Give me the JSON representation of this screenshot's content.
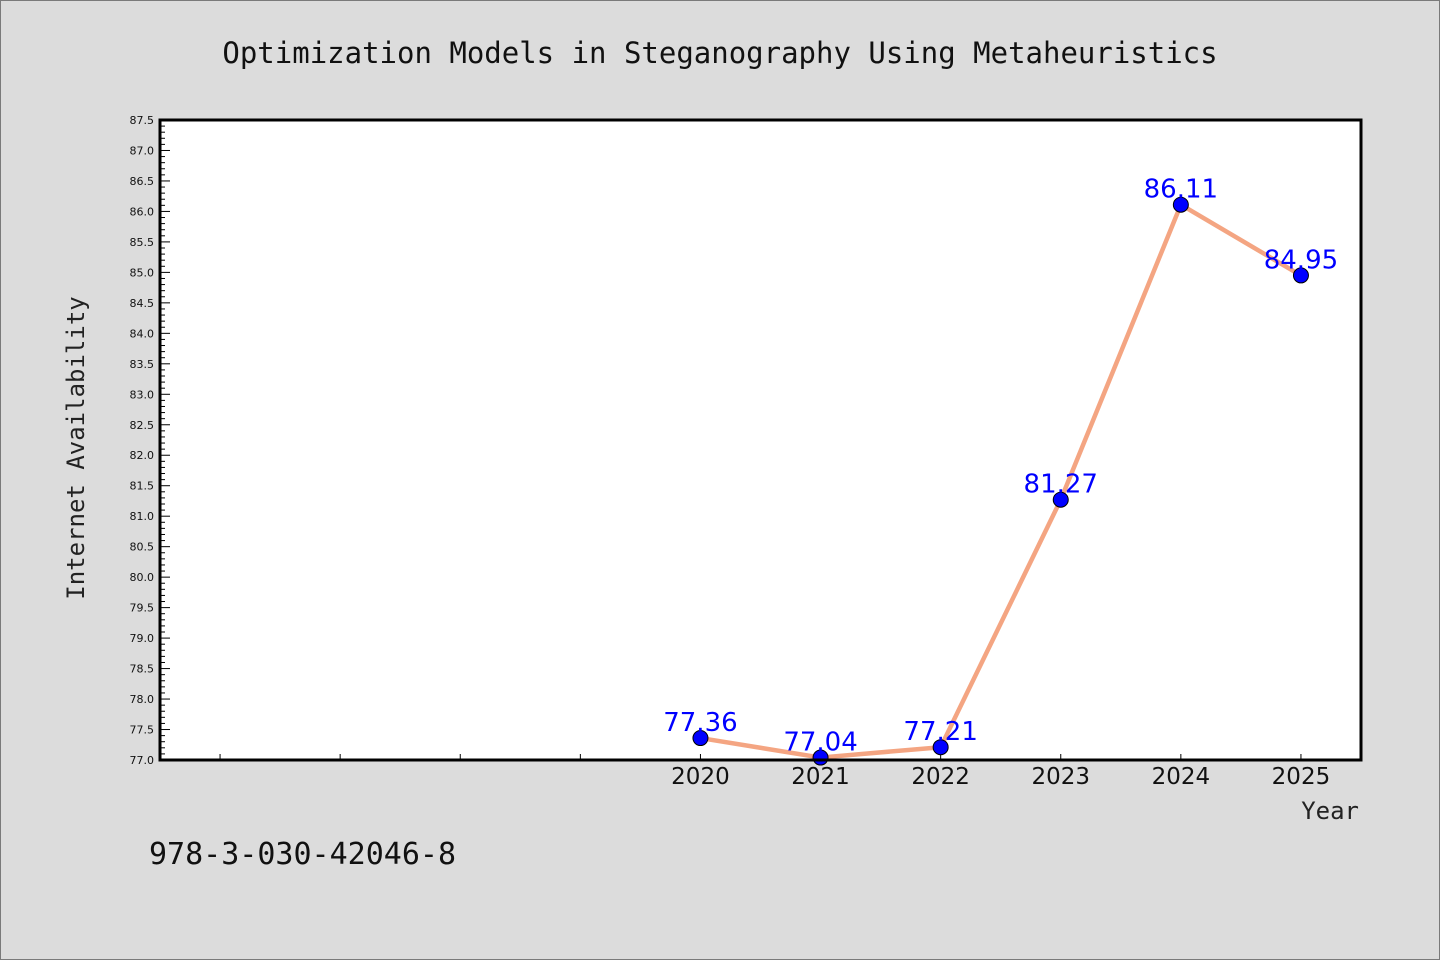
{
  "chart_data": {
    "type": "line",
    "title": "Optimization Models in Steganography Using Metaheuristics",
    "xlabel": "Year",
    "ylabel": "Internet Availability",
    "categories": [
      "2020",
      "2021",
      "2022",
      "2023",
      "2024",
      "2025"
    ],
    "values": [
      77.36,
      77.04,
      77.21,
      81.27,
      86.11,
      84.95
    ],
    "data_labels": [
      "77.36",
      "77.04",
      "77.21",
      "81.27",
      "86.11",
      "84.95"
    ],
    "ylim": [
      77.0,
      87.5
    ],
    "yticks": [
      "77.0",
      "77.5",
      "78.0",
      "78.5",
      "79.0",
      "79.5",
      "80.0",
      "80.5",
      "81.0",
      "81.5",
      "82.0",
      "82.5",
      "83.0",
      "83.5",
      "84.0",
      "84.5",
      "85.0",
      "85.5",
      "86.0",
      "86.5",
      "87.0",
      "87.5"
    ],
    "x_index_range": [
      -4.5,
      5.5
    ],
    "grid": false,
    "legend": "none",
    "colors": {
      "line": "#f4a582",
      "marker": "#0000ff",
      "data_label": "#0000ff",
      "plot_background": "#ffffff",
      "figure_background": "#dcdcdc"
    }
  },
  "footer": {
    "isbn": "978-3-030-42046-8"
  }
}
